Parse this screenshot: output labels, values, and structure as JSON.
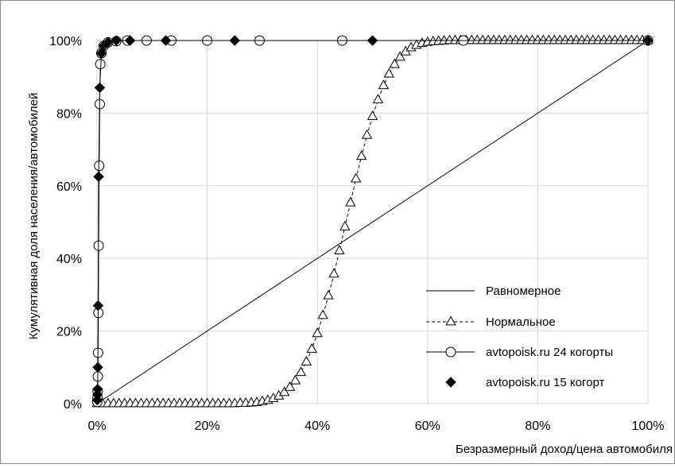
{
  "chart_data": {
    "type": "line",
    "title": "",
    "xlabel": "Безразмерный доход/цена автомобиля",
    "ylabel": "Кумулятивная доля населения/автомобилей",
    "xlim": [
      0,
      100
    ],
    "ylim": [
      0,
      100
    ],
    "x_ticks": [
      "0%",
      "20%",
      "40%",
      "60%",
      "80%",
      "100%"
    ],
    "y_ticks": [
      "0%",
      "20%",
      "40%",
      "60%",
      "80%",
      "100%"
    ],
    "grid": true,
    "legend_position": "lower-right",
    "series": [
      {
        "name": "Равномерное",
        "marker": "none",
        "line_style": "solid",
        "x": [
          0,
          100
        ],
        "y": [
          0,
          100
        ]
      },
      {
        "name": "Нормальное",
        "marker": "open-triangle",
        "line_style": "dashed",
        "x": [
          0,
          1,
          2,
          3,
          4,
          5,
          6,
          7,
          8,
          9,
          10,
          11,
          12,
          13,
          14,
          15,
          16,
          17,
          18,
          19,
          20,
          21,
          22,
          23,
          24,
          25,
          26,
          27,
          28,
          29,
          30,
          31,
          32,
          33,
          34,
          35,
          36,
          37,
          38,
          39,
          40,
          41,
          42,
          43,
          44,
          45,
          46,
          47,
          48,
          49,
          50,
          51,
          52,
          53,
          54,
          55,
          56,
          57,
          58,
          59,
          60,
          61,
          62,
          63,
          64,
          65,
          66,
          67,
          68,
          69,
          70,
          71,
          72,
          73,
          74,
          75,
          76,
          77,
          78,
          79,
          80,
          81,
          82,
          83,
          84,
          85,
          86,
          87,
          88,
          89,
          90,
          91,
          92,
          93,
          94,
          95,
          96,
          97,
          98,
          99,
          100
        ],
        "y": [
          0,
          0,
          0,
          0,
          0,
          0,
          0,
          0,
          0,
          0,
          0,
          0,
          0,
          0,
          0,
          0,
          0,
          0,
          0,
          0,
          0,
          0,
          0,
          0,
          0,
          0,
          0.1,
          0.1,
          0.2,
          0.3,
          0.6,
          0.9,
          1.4,
          2.1,
          3.1,
          4.5,
          6.3,
          8.6,
          11.5,
          15.0,
          19.3,
          24.3,
          29.7,
          35.7,
          42.1,
          48.7,
          55.3,
          61.9,
          68.1,
          73.9,
          79.1,
          83.7,
          87.6,
          90.8,
          93.4,
          95.4,
          96.9,
          98.0,
          98.7,
          99.2,
          99.5,
          99.7,
          99.8,
          99.9,
          100,
          100,
          100,
          100,
          100,
          100,
          100,
          100,
          100,
          100,
          100,
          100,
          100,
          100,
          100,
          100,
          100,
          100,
          100,
          100,
          100,
          100,
          100,
          100,
          100,
          100,
          100,
          100,
          100,
          100,
          100,
          100,
          100,
          100,
          100,
          100,
          100
        ]
      },
      {
        "name": "avtopoisk.ru 24 когорты",
        "marker": "open-circle",
        "line_style": "solid",
        "x": [
          0.05,
          0.08,
          0.12,
          0.15,
          0.2,
          0.25,
          0.3,
          0.4,
          0.5,
          0.6,
          0.8,
          1.2,
          2.0,
          3.5,
          5.5,
          9.0,
          13.5,
          20,
          29.5,
          44.5,
          66.5,
          100
        ],
        "y": [
          0.5,
          1.5,
          3.5,
          7.5,
          14,
          25,
          43.5,
          65.5,
          82.5,
          93.5,
          96.5,
          98.5,
          99.5,
          99.8,
          100,
          100,
          100,
          100,
          100,
          100,
          100,
          100
        ]
      },
      {
        "name": "avtopoisk.ru 15 когорт",
        "marker": "filled-diamond",
        "line_style": "solid",
        "x": [
          0.05,
          0.08,
          0.12,
          0.15,
          0.2,
          0.3,
          0.5,
          0.8,
          1.2,
          2.0,
          3.5,
          6.0,
          12.5,
          25,
          50,
          100
        ],
        "y": [
          1.0,
          2.5,
          4.0,
          10.0,
          27.0,
          62.5,
          87.0,
          96.5,
          98.5,
          99.5,
          100,
          100,
          100,
          100,
          100,
          100
        ]
      }
    ]
  }
}
